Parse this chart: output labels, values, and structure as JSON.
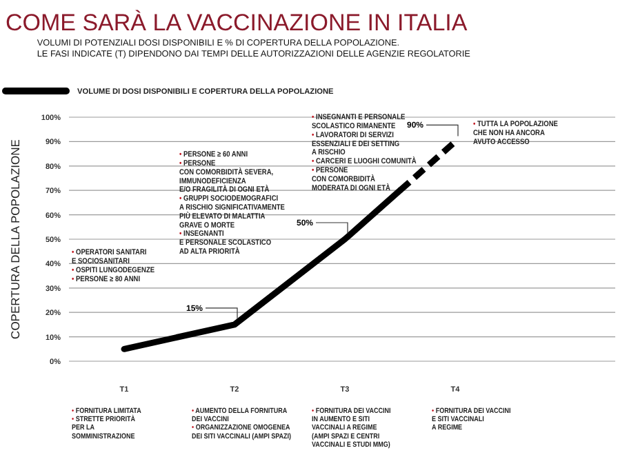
{
  "chart_data": {
    "type": "line",
    "title": "COME SARÀ LA VACCINAZIONE IN ITALIA",
    "subtitle": "VOLUMI DI POTENZIALI DOSI DISPONIBILI E % DI COPERTURA DELLA POPOLAZIONE.\nLE FASI INDICATE (T) DIPENDONO DAI TEMPI DELLE AUTORIZZAZIONI DELLE AGENZIE REGOLATORIE",
    "ylabel": "COPERTURA DELLA POPOLAZIONE",
    "categories": [
      "T1",
      null,
      "T2",
      null,
      "T3",
      null,
      "T4"
    ],
    "ylim": [
      0,
      100
    ],
    "yticks": [
      {
        "value": 0,
        "label": "0%"
      },
      {
        "value": 10,
        "label": "10%"
      },
      {
        "value": 20,
        "label": "20%"
      },
      {
        "value": 30,
        "label": "30%"
      },
      {
        "value": 40,
        "label": "40%"
      },
      {
        "value": 50,
        "label": "50%"
      },
      {
        "value": 60,
        "label": "60%"
      },
      {
        "value": 70,
        "label": "70%"
      },
      {
        "value": 80,
        "label": "80%"
      },
      {
        "value": 90,
        "label": "90%"
      },
      {
        "value": 100,
        "label": "100%"
      }
    ],
    "grid": "y",
    "legend": "top left",
    "series": [
      {
        "name": "VOLUME DI DOSI DISPONIBILI E COPERTURA DELLA POPOLAZIONE",
        "color": "#000000",
        "line_style": "solid",
        "values": [
          5,
          null,
          15,
          null,
          50,
          70,
          null
        ],
        "value_labels": [
          null,
          null,
          "15%",
          null,
          "50%",
          null,
          null
        ]
      },
      {
        "color": "#000000",
        "line_style": "dashed",
        "values": [
          null,
          null,
          null,
          null,
          null,
          70,
          90
        ],
        "value_labels": [
          null,
          null,
          null,
          null,
          null,
          null,
          "90%"
        ]
      }
    ],
    "annotations": [
      "• OPERATORI SANITARI\nE SOCIOSANITARI\n• OSPITI LUNGODEGENZE\n• PERSONE ≥ 80 ANNI",
      "• PERSONE ≥ 60 ANNI\n• PERSONE\nCON COMORBIDITÀ SEVERA,\nIMMUNODEFICIENZA\nE/O FRAGILITÀ DI OGNI ETÀ\n• GRUPPI SOCIODEMOGRAFICI\nA RISCHIO SIGNIFICATIVAMENTE\nPIÙ ELEVATO DI MALATTIA\nGRAVE O MORTE\n• INSEGNANTI\nE PERSONALE SCOLASTICO\nAD ALTA PRIORITÀ",
      "• INSEGNANTI E PERSONALE\nSCOLASTICO RIMANENTE\n• LAVORATORI DI SERVIZI\nESSENZIALI E DEI SETTING\nA RISCHIO\n• CARCERI E LUOGHI COMUNITÀ\n• PERSONE\nCON COMORBIDITÀ\nMODERATA DI OGNI ETÀ",
      "• TUTTA LA POPOLAZIONE\nCHE NON HA ANCORA\nAVUTO ACCESSO",
      "• FORNITURA LIMITATA\n• STRETTE PRIORITÀ\nPER LA\nSOMMINISTRAZIONE",
      "• AUMENTO DELLA FORNITURA\nDEI VACCINI\n• ORGANIZZAZIONE OMOGENEA\nDEI SITI VACCINALI (AMPI SPAZI)",
      "• FORNITURA DEI VACCINI\nIN AUMENTO E SITI\nVACCINALI A REGIME\n(AMPI SPAZI E CENTRI\nVACCINALI E STUDI MMG)",
      "• FORNITURA DEI VACCINI\nE SITI VACCINALI\nA REGIME"
    ]
  }
}
